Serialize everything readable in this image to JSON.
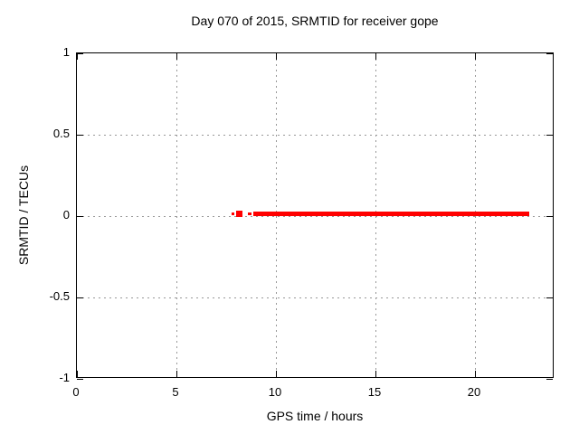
{
  "chart_data": {
    "type": "scatter",
    "title": "Day 070 of 2015, SRMTID for receiver gope",
    "xlabel": "GPS time / hours",
    "ylabel": "SRMTID / TECUs",
    "xlim": [
      0,
      24
    ],
    "ylim": [
      -1,
      1
    ],
    "xticks": [
      0,
      5,
      10,
      15,
      20
    ],
    "xtick_labels": [
      "0",
      "5",
      "10",
      "15",
      "20"
    ],
    "yticks": [
      -1,
      -0.5,
      0,
      0.5,
      1
    ],
    "ytick_labels": [
      "-1",
      "-0.5",
      "0",
      "0.5",
      "1"
    ],
    "grid": true,
    "legend": "none",
    "colors": {
      "data": "#ff0000",
      "grid": "#989898",
      "axis": "#000000",
      "text": "#000000",
      "background": "#ffffff"
    },
    "series": [
      {
        "name": "SRMTID",
        "color": "#ff0000",
        "marker": "filled-square",
        "segments": [
          {
            "x_start": 7.75,
            "x_end": 7.9,
            "y": 0.015
          },
          {
            "x_start": 8.0,
            "x_end": 8.3,
            "y": 0.015
          },
          {
            "x_start": 8.6,
            "x_end": 8.8,
            "y": 0.015
          },
          {
            "x_start": 8.85,
            "x_end": 22.7,
            "y": 0.015
          }
        ]
      }
    ]
  }
}
